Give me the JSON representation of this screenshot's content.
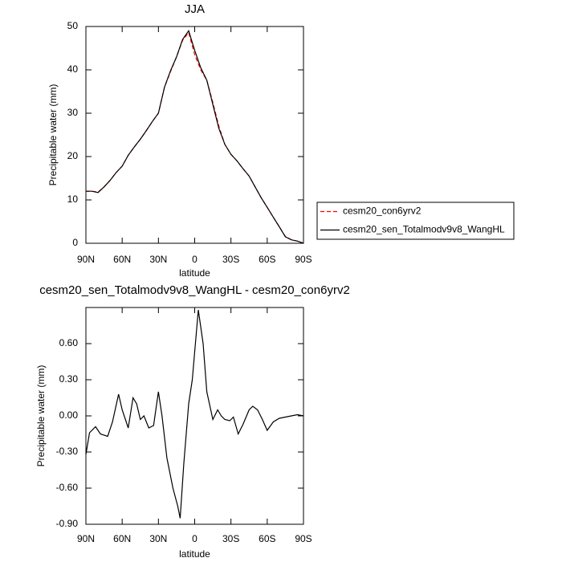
{
  "chart_data": [
    {
      "type": "line",
      "title": "JJA",
      "xlabel": "latitude",
      "ylabel": "Precipitable water (mm)",
      "x": [
        90,
        85,
        80,
        75,
        70,
        65,
        60,
        55,
        50,
        45,
        40,
        35,
        30,
        25,
        20,
        15,
        10,
        5,
        0,
        -5,
        -10,
        -15,
        -20,
        -25,
        -30,
        -35,
        -40,
        -45,
        -50,
        -55,
        -60,
        -65,
        -70,
        -75,
        -80,
        -85,
        -90
      ],
      "series": [
        {
          "name": "cesm20_con6yrv2",
          "color": "#ff0000",
          "linestyle": "dashed",
          "values": [
            12,
            12,
            11.8,
            13,
            14.5,
            16.3,
            17.8,
            20.3,
            22.2,
            24,
            26,
            28.1,
            30,
            36,
            39.6,
            43,
            46.8,
            48.6,
            43.5,
            40,
            37.6,
            32.5,
            27,
            22.8,
            20.5,
            19,
            17.2,
            15.5,
            13,
            10.5,
            8.3,
            6,
            3.8,
            1.6,
            0.8,
            0.5,
            0
          ]
        },
        {
          "name": "cesm20_sen_Totalmodv9v8_WangHL",
          "color": "#000000",
          "linestyle": "solid",
          "values": [
            12,
            12,
            11.7,
            13,
            14.5,
            16.3,
            17.8,
            20.3,
            22.2,
            24,
            26,
            28.1,
            30,
            36,
            39.8,
            43,
            47,
            49,
            44.5,
            40.5,
            37.6,
            32,
            26.5,
            22.8,
            20.5,
            19,
            17.2,
            15.5,
            13,
            10.5,
            8.3,
            6,
            3.8,
            1.5,
            0.8,
            0.5,
            0
          ]
        }
      ],
      "xlim": [
        90,
        -90
      ],
      "xticks": [
        {
          "value": 90,
          "label": "90N"
        },
        {
          "value": 60,
          "label": "60N"
        },
        {
          "value": 30,
          "label": "30N"
        },
        {
          "value": 0,
          "label": "0"
        },
        {
          "value": -30,
          "label": "30S"
        },
        {
          "value": -60,
          "label": "60S"
        },
        {
          "value": -90,
          "label": "90S"
        }
      ],
      "ylim": [
        0,
        50
      ],
      "yticks": [
        0,
        10,
        20,
        30,
        40,
        50
      ],
      "legend": "right"
    },
    {
      "type": "line",
      "title": "cesm20_sen_Totalmodv9v8_WangHL - cesm20_con6yrv2",
      "xlabel": "latitude",
      "ylabel": "Precipitable water (mm)",
      "x": [
        90,
        87,
        82,
        78,
        72,
        68,
        63,
        60,
        55,
        51,
        48,
        45,
        42,
        38,
        34,
        30,
        27,
        23,
        18,
        14,
        12,
        9,
        5,
        2,
        -3,
        -7,
        -10,
        -15,
        -19,
        -22,
        -25,
        -29,
        -32,
        -36,
        -40,
        -45,
        -48,
        -52,
        -56,
        -60,
        -65,
        -70,
        -75,
        -80,
        -85,
        -90
      ],
      "series": [
        {
          "color": "#000000",
          "linestyle": "solid",
          "values": [
            -0.32,
            -0.14,
            -0.09,
            -0.15,
            -0.17,
            -0.05,
            0.18,
            0.05,
            -0.1,
            0.15,
            0.1,
            -0.03,
            0,
            -0.1,
            -0.08,
            0.2,
            0,
            -0.35,
            -0.6,
            -0.75,
            -0.85,
            -0.4,
            0.1,
            0.3,
            0.88,
            0.6,
            0.2,
            -0.03,
            0.05,
            0,
            -0.03,
            -0.04,
            -0.01,
            -0.15,
            -0.07,
            0.05,
            0.08,
            0.05,
            -0.03,
            -0.12,
            -0.05,
            -0.02,
            -0.01,
            0,
            0.01,
            0
          ]
        }
      ],
      "xlim": [
        90,
        -90
      ],
      "xticks": [
        {
          "value": 90,
          "label": "90N"
        },
        {
          "value": 60,
          "label": "60N"
        },
        {
          "value": 30,
          "label": "30N"
        },
        {
          "value": 0,
          "label": "0"
        },
        {
          "value": -30,
          "label": "30S"
        },
        {
          "value": -60,
          "label": "60S"
        },
        {
          "value": -90,
          "label": "90S"
        }
      ],
      "ylim": [
        -0.9,
        0.9
      ],
      "yticks": [
        {
          "value": -0.9,
          "label": "-0.90"
        },
        {
          "value": -0.6,
          "label": "-0.60"
        },
        {
          "value": -0.3,
          "label": "-0.30"
        },
        {
          "value": 0,
          "label": "0.00"
        },
        {
          "value": 0.3,
          "label": "0.30"
        },
        {
          "value": 0.6,
          "label": "0.60"
        }
      ]
    }
  ]
}
